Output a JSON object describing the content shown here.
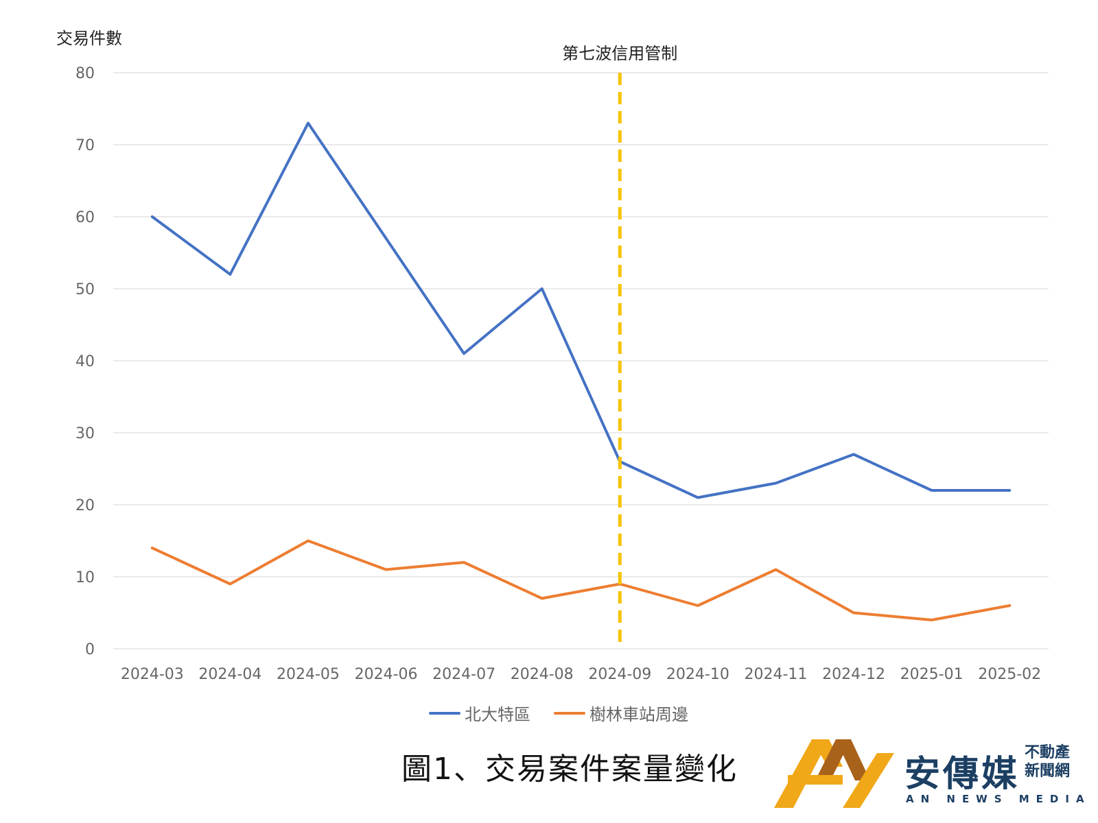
{
  "chart_data": {
    "type": "line",
    "ylabel": "交易件數",
    "ylim": [
      0,
      80
    ],
    "yticks": [
      0,
      10,
      20,
      30,
      40,
      50,
      60,
      70,
      80
    ],
    "categories": [
      "2024-03",
      "2024-04",
      "2024-05",
      "2024-06",
      "2024-07",
      "2024-08",
      "2024-09",
      "2024-10",
      "2024-11",
      "2024-12",
      "2025-01",
      "2025-02"
    ],
    "series": [
      {
        "name": "北大特區",
        "color": "#4472c4",
        "values": [
          60,
          52,
          73,
          57,
          41,
          50,
          26,
          21,
          23,
          27,
          22,
          22
        ]
      },
      {
        "name": "樹林車站周邊",
        "color": "#ed7d31",
        "values": [
          14,
          9,
          15,
          11,
          12,
          7,
          9,
          6,
          11,
          5,
          4,
          6
        ]
      }
    ],
    "annotation": {
      "label": "第七波信用管制",
      "category": "2024-09",
      "color": "#f5c400"
    },
    "grid": true,
    "legend": "bottom"
  },
  "caption": "圖1、交易案件案量變化",
  "logo": {
    "name": "安傳媒",
    "subtitle_line1": "不動產",
    "subtitle_line2": "新聞網",
    "english": "AN NEWS MEDIA",
    "colors": {
      "gold": "#f0a818",
      "brown": "#a8621a",
      "navy": "#1c3f63"
    }
  }
}
